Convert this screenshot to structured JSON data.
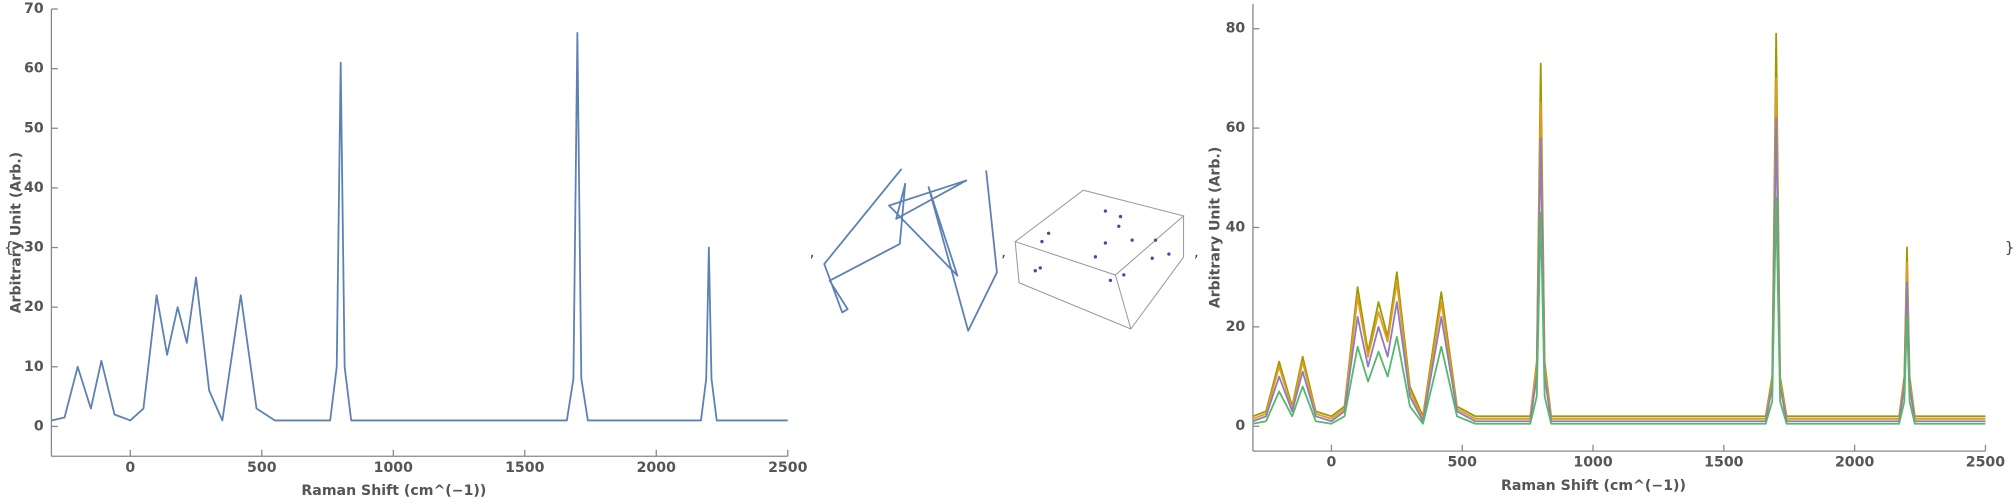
{
  "list_delimiters": {
    "open": "{",
    "separator": ",",
    "close": "}"
  },
  "chart_data": [
    {
      "type": "line",
      "x_label": "Raman Shift  (cm^(−1))",
      "y_label": "Arbitrary Unit  (Arb.)",
      "x": [
        -300,
        -250,
        -200,
        -150,
        -110,
        -60,
        0,
        50,
        100,
        140,
        180,
        215,
        250,
        300,
        350,
        420,
        480,
        550,
        650,
        760,
        785,
        800,
        815,
        840,
        1000,
        1200,
        1400,
        1600,
        1660,
        1685,
        1700,
        1715,
        1740,
        1900,
        2100,
        2170,
        2190,
        2200,
        2210,
        2230,
        2350,
        2500
      ],
      "series": [
        {
          "color": "#5e81b5",
          "values": [
            1,
            1.5,
            10,
            3,
            11,
            2,
            1,
            3,
            22,
            12,
            20,
            14,
            25,
            6,
            1,
            22,
            3,
            1,
            1,
            1,
            10,
            61,
            10,
            1,
            1,
            1,
            1,
            1,
            1,
            8,
            66,
            8,
            1,
            1,
            1,
            1,
            8,
            30,
            8,
            1,
            1,
            1
          ]
        }
      ],
      "xlim": [
        -300,
        2500
      ],
      "xticks": [
        0,
        500,
        1000,
        1500,
        2000,
        2500
      ],
      "ylim": [
        -5,
        70
      ],
      "yticks": [
        0,
        10,
        20,
        30,
        40,
        50,
        60,
        70
      ]
    },
    {
      "type": "line",
      "x": [
        4.4,
        0.1,
        1.1,
        1.4,
        0.4,
        4.3,
        4.6,
        4.1,
        8.0,
        3.7,
        7.5,
        5.9,
        8.1,
        9.7,
        9.1
      ],
      "series": [
        {
          "color": "#5e81b5",
          "values": [
            9.9,
            4.2,
            1.3,
            1.5,
            3.2,
            5.4,
            9.0,
            6.9,
            9.2,
            7.7,
            3.5,
            8.8,
            0.2,
            3.7,
            9.8
          ]
        }
      ],
      "xlim": [
        0,
        10
      ],
      "ylim": [
        0,
        10
      ]
    },
    {
      "type": "scatter",
      "x": [
        5.4,
        6.3,
        6.2,
        5.4,
        7.0,
        8.4,
        4.8,
        9.2,
        8.2,
        6.5,
        5.7,
        2.0,
        1.6,
        1.5,
        1.2
      ],
      "values": [
        8.5,
        8.1,
        7.4,
        6.2,
        6.4,
        6.4,
        5.2,
        5.4,
        5.1,
        3.9,
        3.5,
        6.9,
        6.3,
        4.4,
        4.2
      ],
      "color": "#3f4f9a",
      "xlim": [
        0,
        10
      ],
      "ylim": [
        0,
        10
      ]
    },
    {
      "type": "line",
      "x_label": "Raman Shift  (cm^(−1))",
      "y_label": "Arbitrary Unit  (Arb.)",
      "x": [
        -300,
        -250,
        -200,
        -150,
        -110,
        -60,
        0,
        50,
        100,
        140,
        180,
        215,
        250,
        300,
        350,
        420,
        480,
        550,
        650,
        760,
        785,
        800,
        815,
        840,
        1000,
        1200,
        1400,
        1600,
        1660,
        1685,
        1700,
        1715,
        1740,
        1900,
        2100,
        2170,
        2190,
        2200,
        2210,
        2230,
        2350,
        2500
      ],
      "series": [
        {
          "color": "#9c9a00",
          "values": [
            2,
            3,
            13,
            4,
            14,
            3,
            2,
            4,
            28,
            15,
            25,
            18,
            31,
            8,
            2,
            27,
            4,
            2,
            2,
            2,
            13,
            73,
            13,
            2,
            2,
            2,
            2,
            2,
            2,
            10,
            79,
            10,
            2,
            2,
            2,
            2,
            10,
            36,
            10,
            2,
            2,
            2
          ]
        },
        {
          "color": "#e19c24",
          "values": [
            1.5,
            2.5,
            12,
            3.5,
            13,
            2.5,
            1.5,
            3.5,
            26,
            14,
            23,
            17,
            29,
            7,
            1.5,
            25,
            3.5,
            1.5,
            1.5,
            1.5,
            12,
            65,
            12,
            1.5,
            1.5,
            1.5,
            1.5,
            1.5,
            1.5,
            9,
            70,
            9,
            1.5,
            1.5,
            1.5,
            1.5,
            9,
            33,
            9,
            1.5,
            1.5,
            1.5
          ]
        },
        {
          "color": "#8f7cc0",
          "values": [
            1,
            2,
            10,
            3,
            11,
            2,
            1,
            3,
            22,
            12,
            20,
            14,
            25,
            6,
            1,
            22,
            3,
            1,
            1,
            1,
            10,
            58,
            10,
            1,
            1,
            1,
            1,
            1,
            1,
            8,
            62,
            8,
            1,
            1,
            1,
            1,
            8,
            29,
            8,
            1,
            1,
            1
          ]
        },
        {
          "color": "#55b86a",
          "values": [
            0.5,
            1,
            7,
            2,
            8,
            1,
            0.5,
            2,
            16,
            9,
            15,
            10,
            18,
            4,
            0.5,
            16,
            2,
            0.5,
            0.5,
            0.5,
            6,
            43,
            6,
            0.5,
            0.5,
            0.5,
            0.5,
            0.5,
            0.5,
            5,
            46,
            5,
            0.5,
            0.5,
            0.5,
            0.5,
            5,
            22,
            5,
            0.5,
            0.5,
            0.5
          ]
        }
      ],
      "xlim": [
        -300,
        2500
      ],
      "xticks": [
        0,
        500,
        1000,
        1500,
        2000,
        2500
      ],
      "ylim": [
        -5,
        85
      ],
      "yticks": [
        0,
        20,
        40,
        60,
        80
      ]
    }
  ]
}
